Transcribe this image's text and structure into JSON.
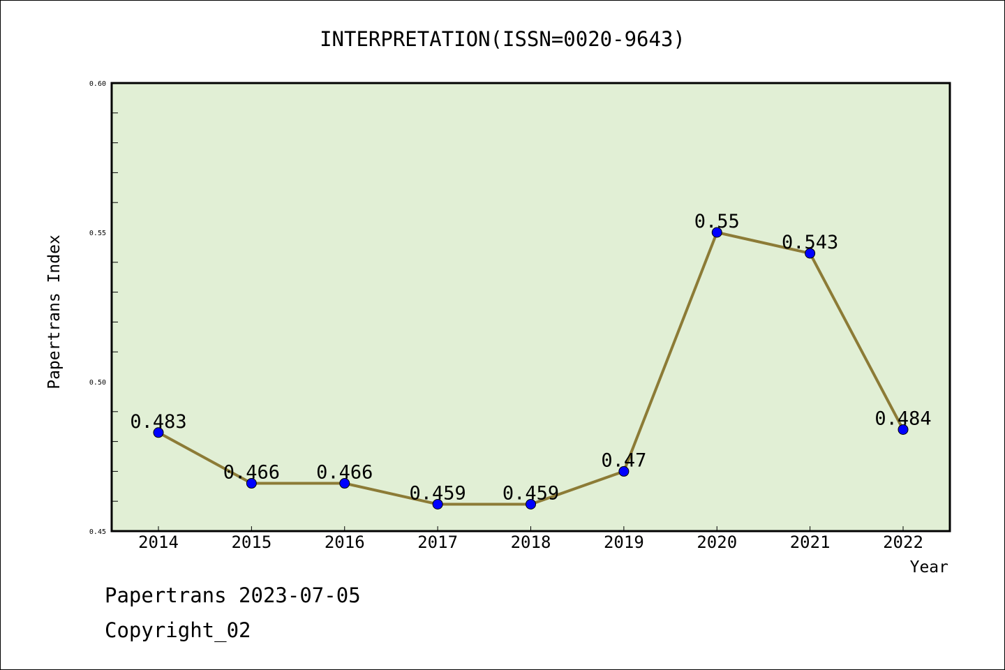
{
  "chart_data": {
    "type": "line",
    "title": "INTERPRETATION(ISSN=0020-9643)",
    "xlabel": "Year",
    "ylabel": "Papertrans Index",
    "categories": [
      "2014",
      "2015",
      "2016",
      "2017",
      "2018",
      "2019",
      "2020",
      "2021",
      "2022"
    ],
    "values": [
      0.483,
      0.466,
      0.466,
      0.459,
      0.459,
      0.47,
      0.55,
      0.543,
      0.484
    ],
    "data_labels": [
      "0.483",
      "0.466",
      "0.466",
      "0.459",
      "0.459",
      "0.47",
      "0.55",
      "0.543",
      "0.484"
    ],
    "ylim": [
      0.45,
      0.6
    ],
    "yticks": [
      "0.45",
      "0.50",
      "0.55",
      "0.60"
    ],
    "yticks_values": [
      0.45,
      0.5,
      0.55,
      0.6
    ],
    "minor_step": 0.01,
    "grid": false,
    "colors": {
      "line": "#8c7b36",
      "marker": "#0000ff",
      "plot_bg": "#e1efd5"
    }
  },
  "footer": {
    "line1": "Papertrans 2023-07-05",
    "line2": "Copyright_02"
  }
}
